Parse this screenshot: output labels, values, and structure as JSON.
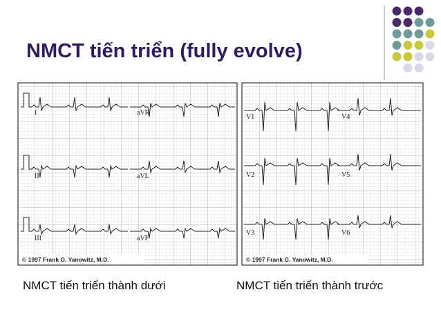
{
  "title": "NMCT tiến triển (fully evolve)",
  "panels": [
    {
      "leads": [
        "I",
        "aVR",
        "II",
        "aVL",
        "III",
        "aVF"
      ],
      "copyright": "© 1997 Frank G. Yanowitz, M.D.",
      "caption": "NMCT tiến triển thành dưới"
    },
    {
      "leads": [
        "V1",
        "V4",
        "V2",
        "V5",
        "V3",
        "V6"
      ],
      "copyright": "© 1997 Frank G. Yanowitz, M.D.",
      "caption": "NMCT tiến triển thành trước"
    }
  ]
}
